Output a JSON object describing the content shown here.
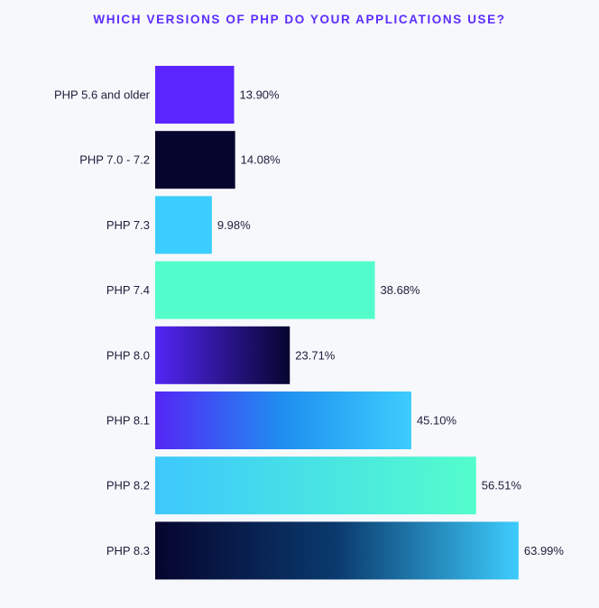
{
  "chart_data": {
    "type": "bar",
    "orientation": "horizontal",
    "title": "WHICH VERSIONS OF PHP DO YOUR APPLICATIONS USE?",
    "xlabel": "",
    "ylabel": "",
    "categories": [
      "PHP 5.6 and older",
      "PHP 7.0 - 7.2",
      "PHP 7.3",
      "PHP 7.4",
      "PHP 8.0",
      "PHP 8.1",
      "PHP 8.2",
      "PHP 8.3"
    ],
    "values": [
      13.9,
      14.08,
      9.98,
      38.68,
      23.71,
      45.1,
      56.51,
      63.99
    ],
    "value_labels": [
      "13.90%",
      "14.08%",
      "9.98%",
      "38.68%",
      "23.71%",
      "45.10%",
      "56.51%",
      "63.99%"
    ],
    "xlim": [
      0,
      64
    ],
    "grid": false,
    "legend": "none",
    "bar_fills": [
      {
        "type": "solid",
        "colors": [
          "#5b25ff"
        ]
      },
      {
        "type": "solid",
        "colors": [
          "#06052e"
        ]
      },
      {
        "type": "solid",
        "colors": [
          "#3bcdfd"
        ]
      },
      {
        "type": "solid",
        "colors": [
          "#53fdcb"
        ]
      },
      {
        "type": "gradient",
        "colors": [
          "#5326f5",
          "#06052e"
        ]
      },
      {
        "type": "gradient",
        "colors": [
          "#5326f5",
          "#1f8ff0",
          "#3dcdfd"
        ]
      },
      {
        "type": "gradient",
        "colors": [
          "#3dc8fd",
          "#53fdcb"
        ]
      },
      {
        "type": "gradient",
        "colors": [
          "#06052e",
          "#0a3a6e",
          "#3dcdfd"
        ]
      }
    ],
    "colors": {
      "title": "#5b2cff",
      "text": "#1b1f3b",
      "background": "#f7f8fc"
    }
  }
}
